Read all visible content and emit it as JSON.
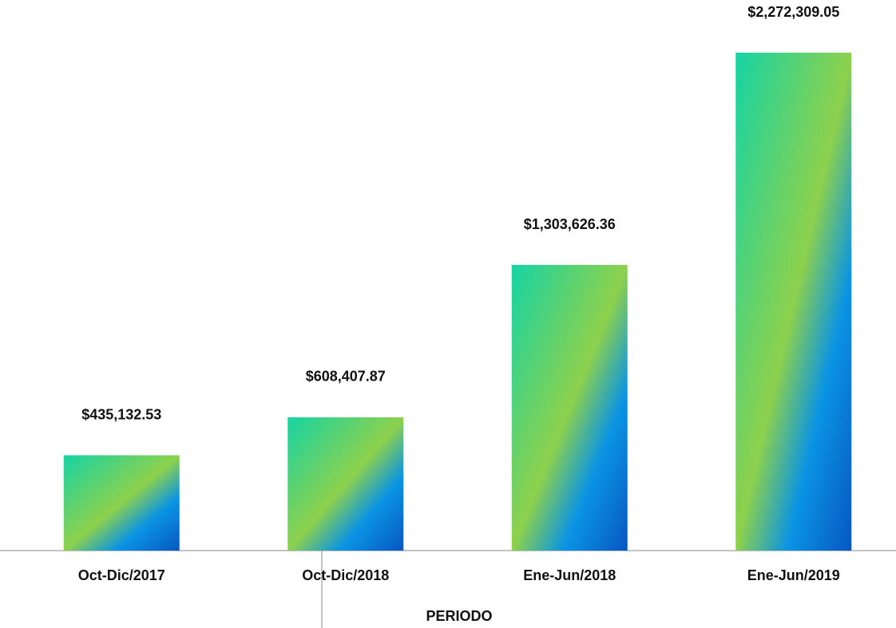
{
  "chart_data": {
    "type": "bar",
    "x_label": "PERIODO",
    "categories": [
      "Oct-Dic/2017",
      "Oct-Dic/2018",
      "Ene-Jun/2018",
      "Ene-Jun/2019"
    ],
    "values": [
      435132.53,
      608407.87,
      1303626.36,
      2272309.05
    ],
    "value_labels": [
      "$435,132.53",
      "$608,407.87",
      "$1,303,626.36",
      "$2,272,309.05"
    ],
    "gradient": [
      "#16d4a4",
      "#8dd14c",
      "#0a94e4",
      "#0857c0"
    ]
  }
}
